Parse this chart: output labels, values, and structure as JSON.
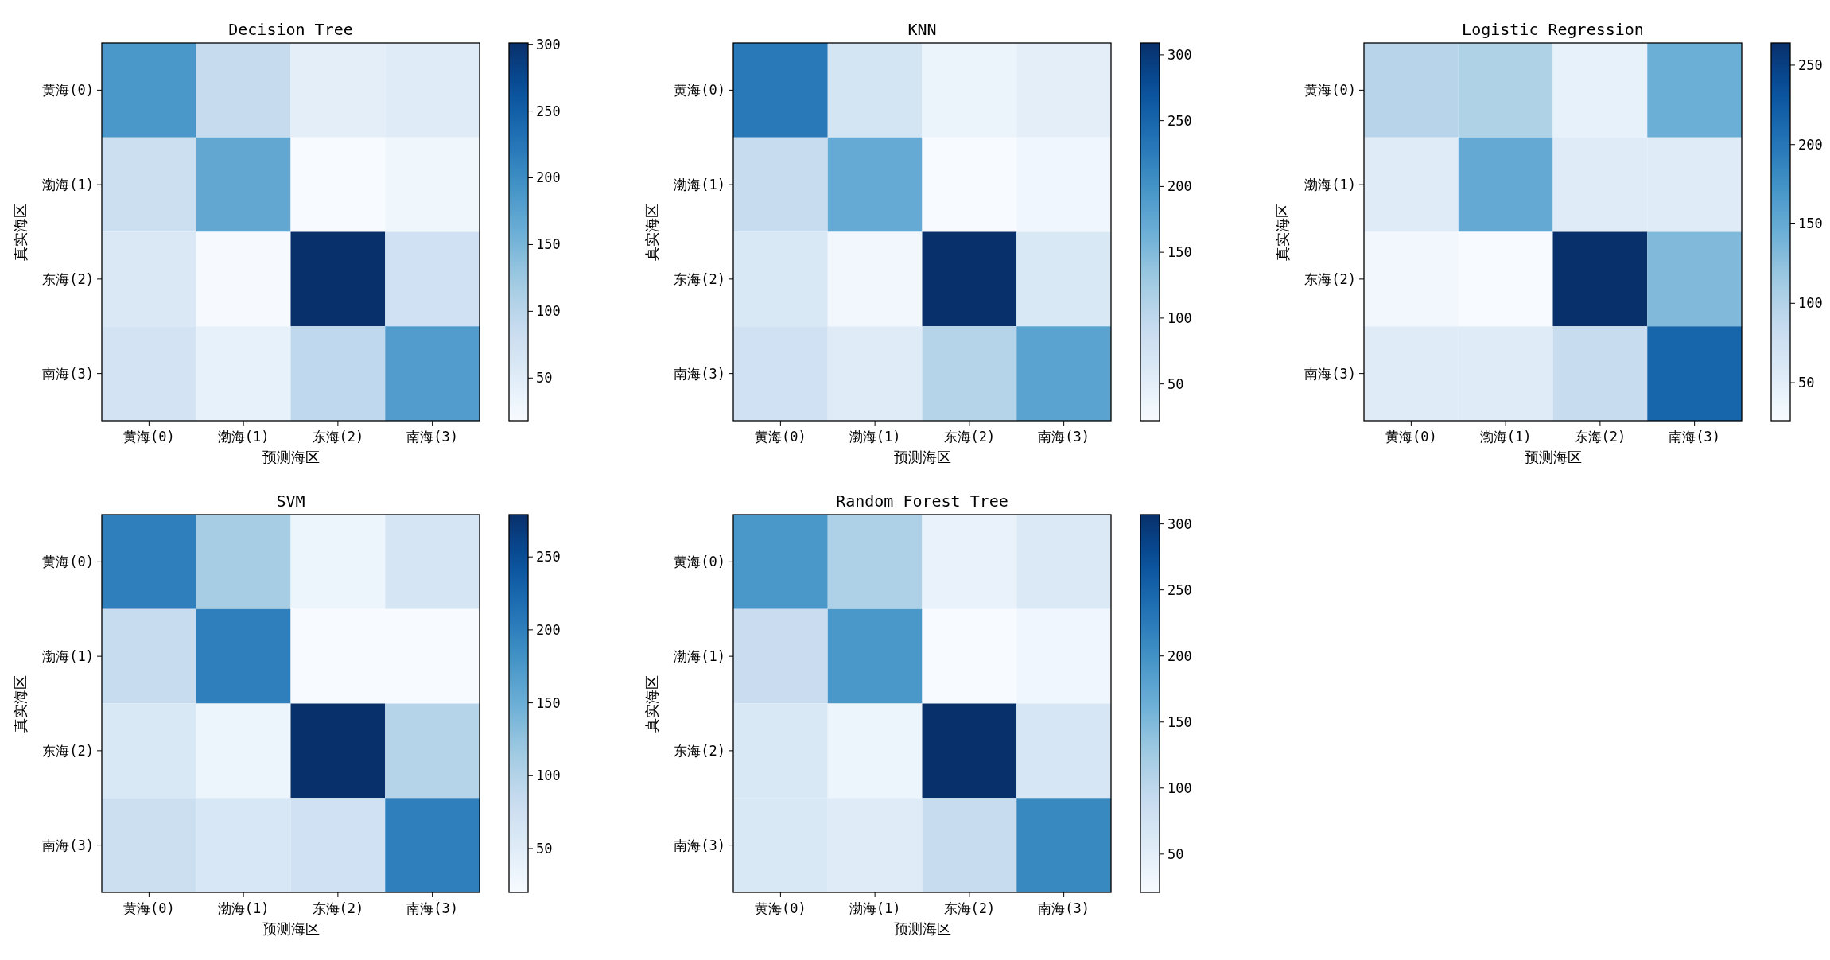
{
  "chart_data": [
    {
      "type": "heatmap",
      "title": "Decision Tree",
      "xlabel": "预测海区",
      "ylabel": "真实海区",
      "categories": [
        "黄海(0)",
        "渤海(1)",
        "东海(2)",
        "南海(3)"
      ],
      "y_categories": [
        "黄海(0)",
        "渤海(1)",
        "东海(2)",
        "南海(3)"
      ],
      "cells": [
        [
          188,
          88,
          46,
          52
        ],
        [
          80,
          168,
          18,
          30
        ],
        [
          60,
          20,
          301,
          75
        ],
        [
          70,
          40,
          95,
          182
        ]
      ],
      "clim": [
        18,
        301
      ],
      "cticks": [
        50,
        100,
        150,
        200,
        250,
        300
      ]
    },
    {
      "type": "heatmap",
      "title": "KNN",
      "xlabel": "预测海区",
      "ylabel": "真实海区",
      "categories": [
        "黄海(0)",
        "渤海(1)",
        "东海(2)",
        "南海(3)"
      ],
      "y_categories": [
        "黄海(0)",
        "渤海(1)",
        "东海(2)",
        "南海(3)"
      ],
      "cells": [
        [
          229,
          74,
          39,
          51
        ],
        [
          91,
          171,
          22,
          33
        ],
        [
          65,
          30,
          309,
          65
        ],
        [
          80,
          56,
          108,
          180
        ]
      ],
      "clim": [
        22,
        309
      ],
      "cticks": [
        50,
        100,
        150,
        200,
        250,
        300
      ]
    },
    {
      "type": "heatmap",
      "title": "Logistic Regression",
      "xlabel": "预测海区",
      "ylabel": "真实海区",
      "categories": [
        "黄海(0)",
        "渤海(1)",
        "东海(2)",
        "南海(3)"
      ],
      "y_categories": [
        "黄海(0)",
        "渤海(1)",
        "东海(2)",
        "南海(3)"
      ],
      "cells": [
        [
          97,
          102,
          45,
          145
        ],
        [
          55,
          150,
          55,
          55
        ],
        [
          33,
          26,
          264,
          133
        ],
        [
          55,
          55,
          83,
          216
        ]
      ],
      "clim": [
        26,
        264
      ],
      "cticks": [
        50,
        100,
        150,
        200,
        250
      ]
    },
    {
      "type": "heatmap",
      "title": "SVM",
      "xlabel": "预测海区",
      "ylabel": "真实海区",
      "categories": [
        "黄海(0)",
        "渤海(1)",
        "东海(2)",
        "南海(3)"
      ],
      "y_categories": [
        "黄海(0)",
        "渤海(1)",
        "东海(2)",
        "南海(3)"
      ],
      "cells": [
        [
          201,
          111,
          33,
          64
        ],
        [
          82,
          201,
          20,
          20
        ],
        [
          59,
          33,
          279,
          98
        ],
        [
          77,
          61,
          72,
          201
        ]
      ],
      "clim": [
        20,
        279
      ],
      "cticks": [
        50,
        100,
        150,
        200,
        250
      ]
    },
    {
      "type": "heatmap",
      "title": "Random Forest Tree",
      "xlabel": "预测海区",
      "ylabel": "真实海区",
      "categories": [
        "黄海(0)",
        "渤海(1)",
        "东海(2)",
        "南海(3)"
      ],
      "y_categories": [
        "黄海(0)",
        "渤海(1)",
        "东海(2)",
        "南海(3)"
      ],
      "cells": [
        [
          193,
          113,
          41,
          61
        ],
        [
          87,
          193,
          21,
          32
        ],
        [
          64,
          35,
          307,
          67
        ],
        [
          64,
          55,
          90,
          210
        ]
      ],
      "clim": [
        21,
        307
      ],
      "cticks": [
        50,
        100,
        150,
        200,
        250,
        300
      ]
    }
  ]
}
